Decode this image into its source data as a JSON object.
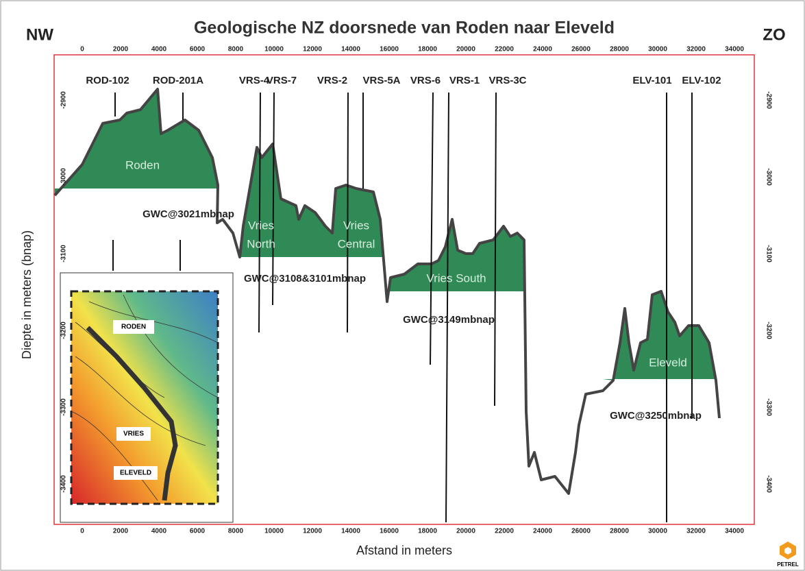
{
  "title": "Geologische NZ doorsnede van Roden naar Eleveld",
  "left_end": "NW",
  "right_end": "ZO",
  "x_axis": {
    "label": "Afstand in meters",
    "ticks": [
      0,
      2000,
      4000,
      6000,
      8000,
      10000,
      12000,
      14000,
      16000,
      18000,
      20000,
      22000,
      24000,
      26000,
      28000,
      30000,
      32000,
      34000
    ]
  },
  "y_axis": {
    "label": "Diepte in meters (bnap)",
    "ticks": [
      -2900,
      -3000,
      -3100,
      -3200,
      -3300,
      -3400
    ]
  },
  "wells": [
    "ROD-102",
    "ROD-201A",
    "VRS-4",
    "VRS-7",
    "VRS-2",
    "VRS-5A",
    "VRS-6",
    "VRS-1",
    "VRS-3C",
    "ELV-101",
    "ELV-102"
  ],
  "fields": [
    {
      "lines": [
        "Roden"
      ]
    },
    {
      "lines": [
        "Vries",
        "North"
      ]
    },
    {
      "lines": [
        "Vries",
        "Central"
      ]
    },
    {
      "lines": [
        "Vries South"
      ]
    },
    {
      "lines": [
        "Eleveld"
      ]
    }
  ],
  "contacts": [
    "GWC@3021mbnap",
    "GWC@3108&3101mbnap",
    "GWC@3149mbnap",
    "GWC@3250mbnap"
  ],
  "inset": {
    "labels": [
      "RODEN",
      "VRIES",
      "ELEVELD"
    ]
  },
  "logo": "PETREL"
}
